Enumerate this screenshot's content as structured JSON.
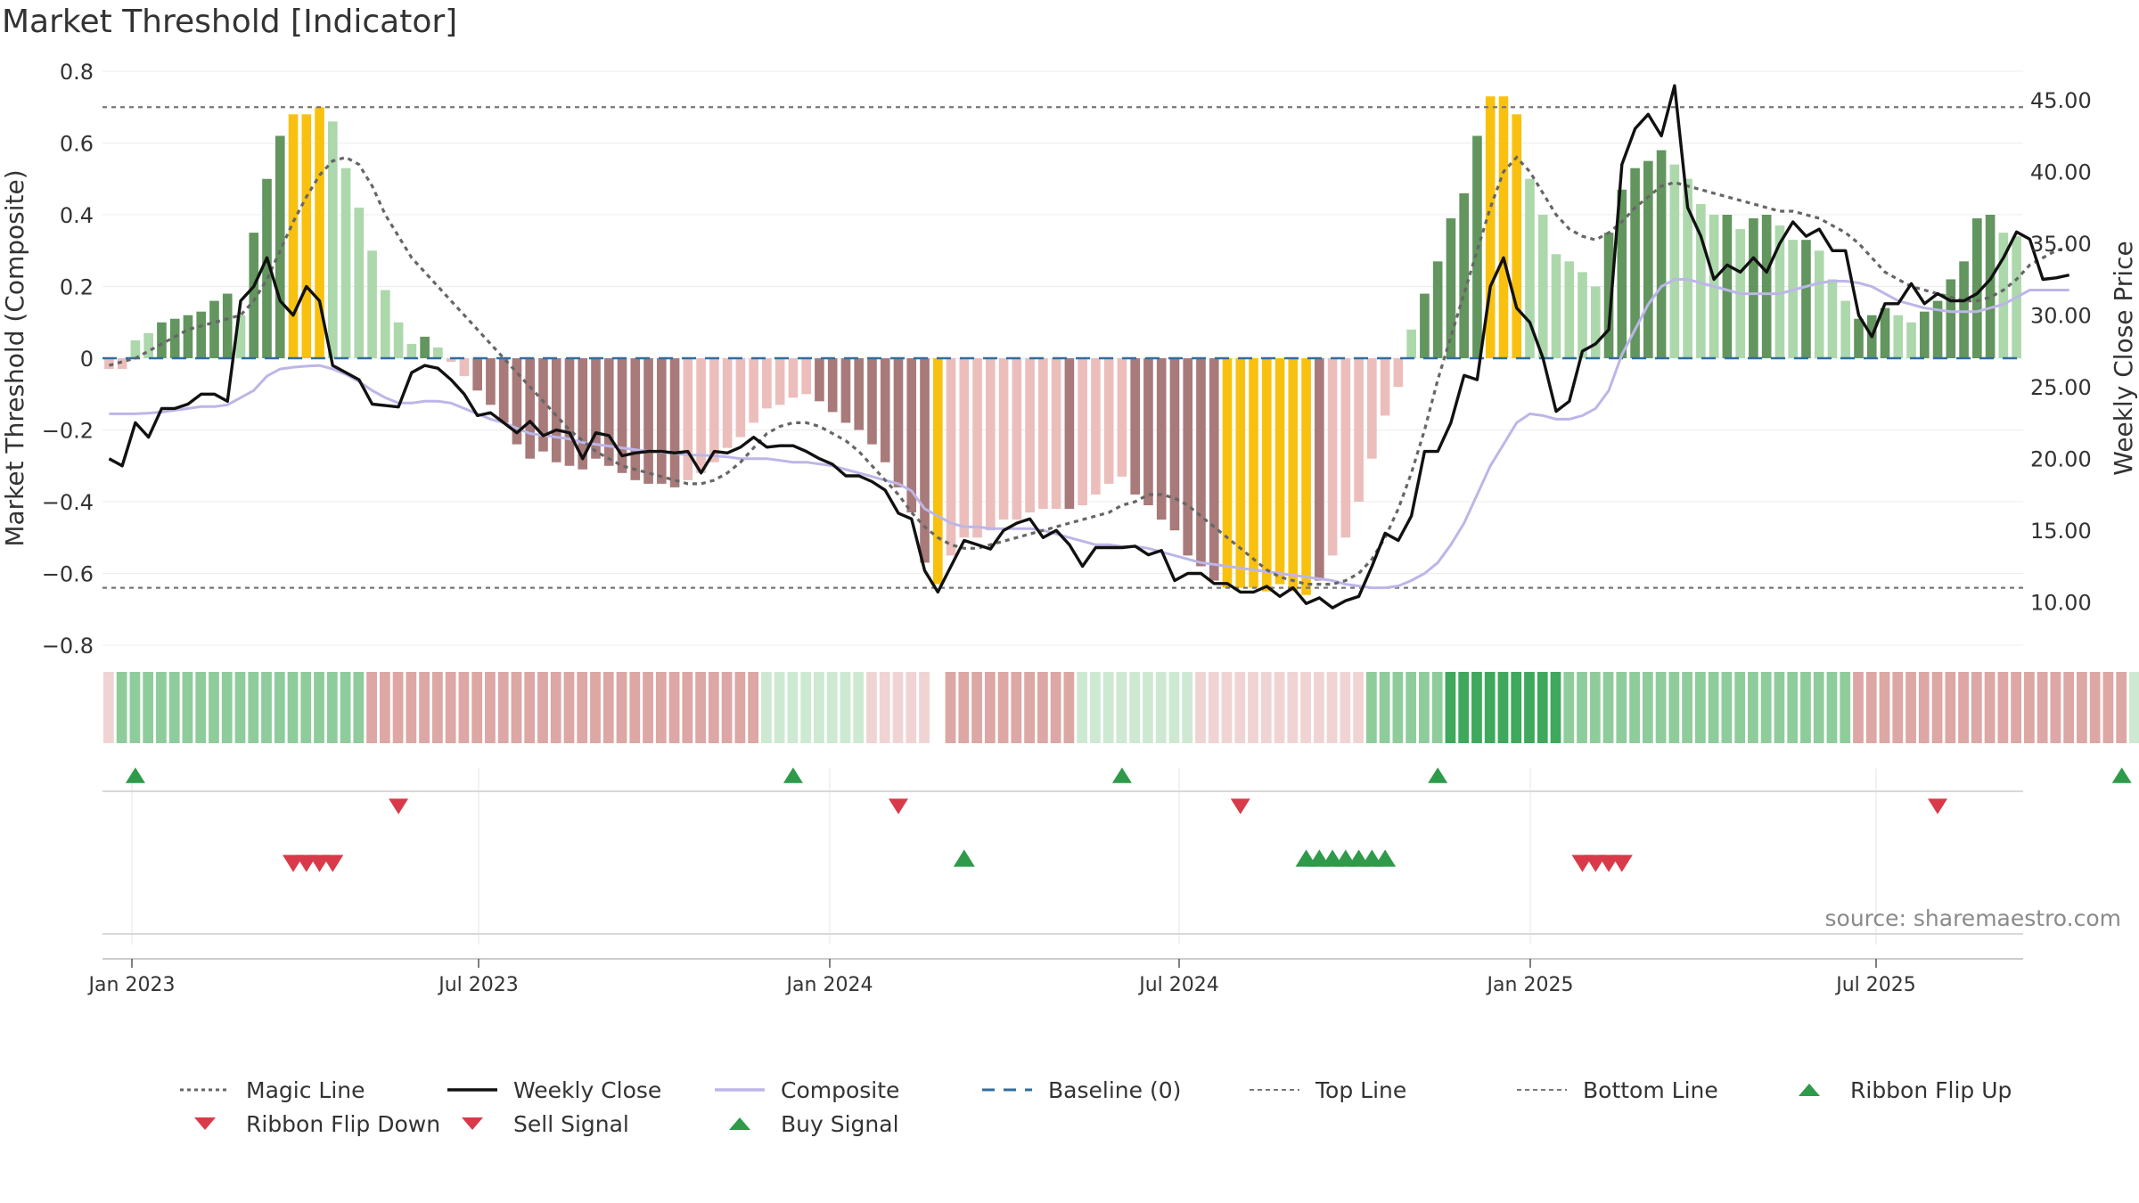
{
  "title": "Market Threshold [Indicator]",
  "source": "source: sharemaestro.com",
  "colors": {
    "green_dark": "#63955f",
    "green_light": "#acd8ac",
    "red_dark": "#a87a7a",
    "red_light": "#ebbebc",
    "gold": "#f9c10f",
    "close": "#111111",
    "composite": "#bcb6e8",
    "magic": "#666666",
    "baseline": "#2f6e9e",
    "thresh": "#777777",
    "buy": "#2e9a4a",
    "sell": "#d93a4a",
    "ribbon_strong_green": "#3fa85c",
    "ribbon_green": "#8fcc9c",
    "ribbon_pale_green": "#cde9d2",
    "ribbon_red": "#dca7a4",
    "ribbon_pale_red": "#f0d4d3"
  },
  "chart_data": {
    "type": "bar",
    "title": "Market Threshold [Indicator]",
    "ylabel": "Market Threshold (Composite)",
    "y2label": "Weekly Close Price",
    "ylim": [
      -0.8,
      0.8
    ],
    "y2lim": [
      7.0,
      47.0
    ],
    "yticks": [
      "0.8",
      "0.6",
      "0.4",
      "0.2",
      "0",
      "−0.2",
      "−0.4",
      "−0.6",
      "−0.8"
    ],
    "y2ticks": [
      "45.00",
      "40.00",
      "35.00",
      "30.00",
      "25.00",
      "20.00",
      "15.00",
      "10.00"
    ],
    "xticks": [
      "Jan 2023",
      "Jul 2023",
      "Jan 2024",
      "Jul 2024",
      "Jan 2025",
      "Jul 2025"
    ],
    "top_line": 0.7,
    "bottom_line": -0.64,
    "baseline": 0,
    "grid": true,
    "legend_position": "bottom",
    "composite_bars": [
      {
        "v": -0.03,
        "c": "red_light"
      },
      {
        "v": -0.03,
        "c": "red_light"
      },
      {
        "v": 0.05,
        "c": "green_light"
      },
      {
        "v": 0.07,
        "c": "green_light"
      },
      {
        "v": 0.1,
        "c": "green_dark"
      },
      {
        "v": 0.11,
        "c": "green_dark"
      },
      {
        "v": 0.12,
        "c": "green_dark"
      },
      {
        "v": 0.13,
        "c": "green_dark"
      },
      {
        "v": 0.16,
        "c": "green_dark"
      },
      {
        "v": 0.18,
        "c": "green_dark"
      },
      {
        "v": 0.12,
        "c": "green_light"
      },
      {
        "v": 0.35,
        "c": "green_dark"
      },
      {
        "v": 0.5,
        "c": "green_dark"
      },
      {
        "v": 0.62,
        "c": "green_dark"
      },
      {
        "v": 0.68,
        "c": "gold"
      },
      {
        "v": 0.68,
        "c": "gold"
      },
      {
        "v": 0.7,
        "c": "gold"
      },
      {
        "v": 0.66,
        "c": "green_light"
      },
      {
        "v": 0.53,
        "c": "green_light"
      },
      {
        "v": 0.42,
        "c": "green_light"
      },
      {
        "v": 0.3,
        "c": "green_light"
      },
      {
        "v": 0.19,
        "c": "green_light"
      },
      {
        "v": 0.1,
        "c": "green_light"
      },
      {
        "v": 0.04,
        "c": "green_light"
      },
      {
        "v": 0.06,
        "c": "green_dark"
      },
      {
        "v": 0.03,
        "c": "green_light"
      },
      {
        "v": -0.01,
        "c": "red_light"
      },
      {
        "v": -0.05,
        "c": "red_light"
      },
      {
        "v": -0.09,
        "c": "red_dark"
      },
      {
        "v": -0.13,
        "c": "red_dark"
      },
      {
        "v": -0.18,
        "c": "red_dark"
      },
      {
        "v": -0.24,
        "c": "red_dark"
      },
      {
        "v": -0.28,
        "c": "red_dark"
      },
      {
        "v": -0.26,
        "c": "red_dark"
      },
      {
        "v": -0.29,
        "c": "red_dark"
      },
      {
        "v": -0.3,
        "c": "red_dark"
      },
      {
        "v": -0.31,
        "c": "red_dark"
      },
      {
        "v": -0.28,
        "c": "red_dark"
      },
      {
        "v": -0.3,
        "c": "red_dark"
      },
      {
        "v": -0.32,
        "c": "red_dark"
      },
      {
        "v": -0.34,
        "c": "red_dark"
      },
      {
        "v": -0.35,
        "c": "red_dark"
      },
      {
        "v": -0.35,
        "c": "red_dark"
      },
      {
        "v": -0.36,
        "c": "red_dark"
      },
      {
        "v": -0.34,
        "c": "red_light"
      },
      {
        "v": -0.32,
        "c": "red_light"
      },
      {
        "v": -0.29,
        "c": "red_light"
      },
      {
        "v": -0.25,
        "c": "red_light"
      },
      {
        "v": -0.22,
        "c": "red_light"
      },
      {
        "v": -0.18,
        "c": "red_light"
      },
      {
        "v": -0.14,
        "c": "red_light"
      },
      {
        "v": -0.13,
        "c": "red_light"
      },
      {
        "v": -0.11,
        "c": "red_light"
      },
      {
        "v": -0.1,
        "c": "red_light"
      },
      {
        "v": -0.12,
        "c": "red_dark"
      },
      {
        "v": -0.15,
        "c": "red_dark"
      },
      {
        "v": -0.18,
        "c": "red_dark"
      },
      {
        "v": -0.2,
        "c": "red_dark"
      },
      {
        "v": -0.24,
        "c": "red_dark"
      },
      {
        "v": -0.29,
        "c": "red_dark"
      },
      {
        "v": -0.36,
        "c": "red_dark"
      },
      {
        "v": -0.43,
        "c": "red_dark"
      },
      {
        "v": -0.57,
        "c": "red_dark"
      },
      {
        "v": -0.63,
        "c": "gold"
      },
      {
        "v": -0.55,
        "c": "red_light"
      },
      {
        "v": -0.5,
        "c": "red_light"
      },
      {
        "v": -0.5,
        "c": "red_light"
      },
      {
        "v": -0.48,
        "c": "red_light"
      },
      {
        "v": -0.45,
        "c": "red_light"
      },
      {
        "v": -0.45,
        "c": "red_light"
      },
      {
        "v": -0.43,
        "c": "red_light"
      },
      {
        "v": -0.42,
        "c": "red_light"
      },
      {
        "v": -0.42,
        "c": "red_light"
      },
      {
        "v": -0.42,
        "c": "red_dark"
      },
      {
        "v": -0.41,
        "c": "red_light"
      },
      {
        "v": -0.38,
        "c": "red_light"
      },
      {
        "v": -0.35,
        "c": "red_light"
      },
      {
        "v": -0.33,
        "c": "red_light"
      },
      {
        "v": -0.38,
        "c": "red_dark"
      },
      {
        "v": -0.41,
        "c": "red_dark"
      },
      {
        "v": -0.45,
        "c": "red_dark"
      },
      {
        "v": -0.48,
        "c": "red_dark"
      },
      {
        "v": -0.55,
        "c": "red_dark"
      },
      {
        "v": -0.58,
        "c": "red_dark"
      },
      {
        "v": -0.62,
        "c": "red_dark"
      },
      {
        "v": -0.64,
        "c": "gold"
      },
      {
        "v": -0.64,
        "c": "gold"
      },
      {
        "v": -0.64,
        "c": "gold"
      },
      {
        "v": -0.65,
        "c": "gold"
      },
      {
        "v": -0.63,
        "c": "gold"
      },
      {
        "v": -0.65,
        "c": "gold"
      },
      {
        "v": -0.66,
        "c": "gold"
      },
      {
        "v": -0.62,
        "c": "red_dark"
      },
      {
        "v": -0.55,
        "c": "red_light"
      },
      {
        "v": -0.5,
        "c": "red_light"
      },
      {
        "v": -0.4,
        "c": "red_light"
      },
      {
        "v": -0.28,
        "c": "red_light"
      },
      {
        "v": -0.16,
        "c": "red_light"
      },
      {
        "v": -0.08,
        "c": "red_light"
      },
      {
        "v": 0.08,
        "c": "green_light"
      },
      {
        "v": 0.18,
        "c": "green_dark"
      },
      {
        "v": 0.27,
        "c": "green_dark"
      },
      {
        "v": 0.39,
        "c": "green_dark"
      },
      {
        "v": 0.46,
        "c": "green_dark"
      },
      {
        "v": 0.62,
        "c": "green_dark"
      },
      {
        "v": 0.73,
        "c": "gold"
      },
      {
        "v": 0.73,
        "c": "gold"
      },
      {
        "v": 0.68,
        "c": "gold"
      },
      {
        "v": 0.5,
        "c": "green_light"
      },
      {
        "v": 0.4,
        "c": "green_light"
      },
      {
        "v": 0.29,
        "c": "green_light"
      },
      {
        "v": 0.27,
        "c": "green_light"
      },
      {
        "v": 0.24,
        "c": "green_light"
      },
      {
        "v": 0.2,
        "c": "green_light"
      },
      {
        "v": 0.35,
        "c": "green_dark"
      },
      {
        "v": 0.47,
        "c": "green_dark"
      },
      {
        "v": 0.53,
        "c": "green_dark"
      },
      {
        "v": 0.55,
        "c": "green_dark"
      },
      {
        "v": 0.58,
        "c": "green_dark"
      },
      {
        "v": 0.54,
        "c": "green_light"
      },
      {
        "v": 0.5,
        "c": "green_light"
      },
      {
        "v": 0.43,
        "c": "green_light"
      },
      {
        "v": 0.4,
        "c": "green_light"
      },
      {
        "v": 0.4,
        "c": "green_dark"
      },
      {
        "v": 0.36,
        "c": "green_light"
      },
      {
        "v": 0.39,
        "c": "green_dark"
      },
      {
        "v": 0.4,
        "c": "green_dark"
      },
      {
        "v": 0.37,
        "c": "green_light"
      },
      {
        "v": 0.33,
        "c": "green_light"
      },
      {
        "v": 0.33,
        "c": "green_dark"
      },
      {
        "v": 0.3,
        "c": "green_light"
      },
      {
        "v": 0.22,
        "c": "green_light"
      },
      {
        "v": 0.16,
        "c": "green_light"
      },
      {
        "v": 0.11,
        "c": "green_dark"
      },
      {
        "v": 0.12,
        "c": "green_dark"
      },
      {
        "v": 0.14,
        "c": "green_dark"
      },
      {
        "v": 0.12,
        "c": "green_light"
      },
      {
        "v": 0.1,
        "c": "green_light"
      },
      {
        "v": 0.13,
        "c": "green_dark"
      },
      {
        "v": 0.16,
        "c": "green_dark"
      },
      {
        "v": 0.22,
        "c": "green_dark"
      },
      {
        "v": 0.27,
        "c": "green_dark"
      },
      {
        "v": 0.39,
        "c": "green_dark"
      },
      {
        "v": 0.4,
        "c": "green_dark"
      },
      {
        "v": 0.35,
        "c": "green_light"
      },
      {
        "v": 0.34,
        "c": "green_light"
      }
    ],
    "weekly_close": [
      20.0,
      19.5,
      22.5,
      21.5,
      23.5,
      23.5,
      23.8,
      24.5,
      24.5,
      24.0,
      31.0,
      32.0,
      34.0,
      31.0,
      30.0,
      32.0,
      31.0,
      26.5,
      26.0,
      25.5,
      23.8,
      23.7,
      23.6,
      26.0,
      26.5,
      26.3,
      25.5,
      24.5,
      23.0,
      23.2,
      22.5,
      21.8,
      22.6,
      21.6,
      22.0,
      21.8,
      20.0,
      21.8,
      21.6,
      20.2,
      20.4,
      20.5,
      20.5,
      20.4,
      20.5,
      19.0,
      20.5,
      20.4,
      20.8,
      21.5,
      20.8,
      20.9,
      20.9,
      20.5,
      20.0,
      19.6,
      18.8,
      18.8,
      18.4,
      17.8,
      16.2,
      15.8,
      12.2,
      10.7,
      12.5,
      14.3,
      14.0,
      13.7,
      15.0,
      15.5,
      15.8,
      14.5,
      15.0,
      14.0,
      12.5,
      13.8,
      13.8,
      13.8,
      13.9,
      13.3,
      13.6,
      11.5,
      12.0,
      12.0,
      11.3,
      11.3,
      10.7,
      10.7,
      11.1,
      10.4,
      11.0,
      9.9,
      10.3,
      9.6,
      10.1,
      10.4,
      12.5,
      14.8,
      14.3,
      16.0,
      20.5,
      20.5,
      22.5,
      25.8,
      25.5,
      32.0,
      34.0,
      30.5,
      29.5,
      27.0,
      23.3,
      24.0,
      27.5,
      28.0,
      29.0,
      40.5,
      43.0,
      44.0,
      42.5,
      46.0,
      37.5,
      35.5,
      32.5,
      33.5,
      33.0,
      34.0,
      33.0,
      35.0,
      36.5,
      35.5,
      36.0,
      34.5,
      34.5,
      30.0,
      28.5,
      30.8,
      30.8,
      32.2,
      30.8,
      31.5,
      31.0,
      31.0,
      31.5,
      32.5,
      34.0,
      35.8,
      35.3,
      32.5,
      32.6,
      32.8
    ],
    "composite_line": [
      -0.155,
      -0.155,
      -0.155,
      -0.153,
      -0.15,
      -0.145,
      -0.14,
      -0.135,
      -0.135,
      -0.13,
      -0.11,
      -0.09,
      -0.05,
      -0.03,
      -0.025,
      -0.022,
      -0.02,
      -0.03,
      -0.045,
      -0.065,
      -0.09,
      -0.11,
      -0.125,
      -0.125,
      -0.12,
      -0.12,
      -0.125,
      -0.14,
      -0.155,
      -0.17,
      -0.18,
      -0.195,
      -0.21,
      -0.215,
      -0.22,
      -0.225,
      -0.235,
      -0.24,
      -0.245,
      -0.25,
      -0.255,
      -0.26,
      -0.262,
      -0.265,
      -0.27,
      -0.27,
      -0.272,
      -0.275,
      -0.28,
      -0.28,
      -0.28,
      -0.285,
      -0.29,
      -0.29,
      -0.295,
      -0.3,
      -0.31,
      -0.32,
      -0.33,
      -0.34,
      -0.35,
      -0.37,
      -0.42,
      -0.44,
      -0.46,
      -0.47,
      -0.47,
      -0.475,
      -0.475,
      -0.475,
      -0.475,
      -0.48,
      -0.49,
      -0.5,
      -0.51,
      -0.52,
      -0.52,
      -0.525,
      -0.525,
      -0.53,
      -0.54,
      -0.55,
      -0.56,
      -0.57,
      -0.575,
      -0.58,
      -0.585,
      -0.59,
      -0.595,
      -0.6,
      -0.605,
      -0.61,
      -0.615,
      -0.62,
      -0.63,
      -0.635,
      -0.64,
      -0.64,
      -0.635,
      -0.62,
      -0.6,
      -0.57,
      -0.52,
      -0.46,
      -0.38,
      -0.3,
      -0.24,
      -0.18,
      -0.155,
      -0.16,
      -0.17,
      -0.17,
      -0.16,
      -0.14,
      -0.09,
      0.01,
      0.08,
      0.15,
      0.2,
      0.22,
      0.22,
      0.21,
      0.2,
      0.19,
      0.18,
      0.18,
      0.18,
      0.18,
      0.19,
      0.2,
      0.21,
      0.215,
      0.215,
      0.21,
      0.2,
      0.18,
      0.16,
      0.15,
      0.14,
      0.135,
      0.13,
      0.13,
      0.13,
      0.14,
      0.15,
      0.17,
      0.19,
      0.19,
      0.19,
      0.19
    ],
    "magic_line": [
      -0.02,
      -0.01,
      0.0,
      0.02,
      0.04,
      0.06,
      0.08,
      0.09,
      0.1,
      0.11,
      0.12,
      0.16,
      0.22,
      0.3,
      0.38,
      0.45,
      0.51,
      0.55,
      0.56,
      0.54,
      0.48,
      0.4,
      0.34,
      0.28,
      0.24,
      0.2,
      0.16,
      0.12,
      0.08,
      0.04,
      0.0,
      -0.04,
      -0.08,
      -0.12,
      -0.16,
      -0.2,
      -0.23,
      -0.26,
      -0.28,
      -0.3,
      -0.31,
      -0.32,
      -0.33,
      -0.34,
      -0.35,
      -0.35,
      -0.34,
      -0.32,
      -0.29,
      -0.25,
      -0.21,
      -0.19,
      -0.18,
      -0.18,
      -0.19,
      -0.21,
      -0.23,
      -0.26,
      -0.3,
      -0.34,
      -0.38,
      -0.43,
      -0.47,
      -0.5,
      -0.52,
      -0.53,
      -0.53,
      -0.52,
      -0.51,
      -0.5,
      -0.49,
      -0.48,
      -0.47,
      -0.46,
      -0.45,
      -0.44,
      -0.43,
      -0.41,
      -0.4,
      -0.38,
      -0.38,
      -0.39,
      -0.41,
      -0.44,
      -0.47,
      -0.5,
      -0.53,
      -0.56,
      -0.59,
      -0.61,
      -0.62,
      -0.63,
      -0.63,
      -0.63,
      -0.62,
      -0.6,
      -0.56,
      -0.5,
      -0.42,
      -0.32,
      -0.2,
      -0.06,
      0.06,
      0.18,
      0.3,
      0.42,
      0.52,
      0.56,
      0.52,
      0.46,
      0.4,
      0.36,
      0.34,
      0.33,
      0.35,
      0.38,
      0.42,
      0.45,
      0.48,
      0.49,
      0.48,
      0.47,
      0.46,
      0.45,
      0.44,
      0.43,
      0.42,
      0.41,
      0.41,
      0.4,
      0.39,
      0.37,
      0.35,
      0.32,
      0.28,
      0.24,
      0.22,
      0.2,
      0.19,
      0.18,
      0.17,
      0.16,
      0.16,
      0.17,
      0.19,
      0.22,
      0.26,
      0.28,
      0.3,
      0.31
    ],
    "ribbon": [
      "pale_red",
      "green",
      "green",
      "green",
      "green",
      "green",
      "green",
      "green",
      "green",
      "green",
      "green",
      "green",
      "green",
      "green",
      "green",
      "green",
      "green",
      "green",
      "green",
      "green",
      "red",
      "red",
      "red",
      "red",
      "red",
      "red",
      "red",
      "red",
      "red",
      "red",
      "red",
      "red",
      "red",
      "red",
      "red",
      "red",
      "red",
      "red",
      "red",
      "red",
      "red",
      "red",
      "red",
      "red",
      "red",
      "red",
      "red",
      "red",
      "red",
      "red",
      "pale_green",
      "pale_green",
      "pale_green",
      "pale_green",
      "pale_green",
      "pale_green",
      "pale_green",
      "pale_green",
      "pale_red",
      "pale_red",
      "pale_red",
      "pale_red",
      "pale_red",
      "pale_red",
      "red",
      "red",
      "red",
      "red",
      "red",
      "red",
      "red",
      "red",
      "red",
      "red",
      "pale_green",
      "pale_green",
      "pale_green",
      "pale_green",
      "pale_green",
      "pale_green",
      "pale_green",
      "pale_green",
      "pale_green",
      "pale_red",
      "pale_red",
      "pale_red",
      "pale_red",
      "pale_red",
      "pale_red",
      "pale_red",
      "pale_red",
      "pale_red",
      "pale_red",
      "pale_red",
      "pale_red",
      "pale_red",
      "green",
      "green",
      "green",
      "green",
      "green",
      "green",
      "strong_green",
      "strong_green",
      "strong_green",
      "strong_green",
      "strong_green",
      "strong_green",
      "strong_green",
      "strong_green",
      "strong_green",
      "green",
      "green",
      "green",
      "green",
      "green",
      "green",
      "green",
      "green",
      "green",
      "green",
      "green",
      "green",
      "green",
      "green",
      "green",
      "green",
      "green",
      "green",
      "green",
      "green",
      "green",
      "green",
      "red",
      "red",
      "red",
      "red",
      "red",
      "red",
      "red",
      "red",
      "red",
      "red",
      "red",
      "red",
      "red",
      "red",
      "red",
      "red",
      "red",
      "red",
      "red",
      "red",
      "red",
      "pale_green",
      "pale_green",
      "pale_green",
      "pale_green"
    ],
    "ribbon_flip_up": [
      2,
      52,
      77,
      101,
      153
    ],
    "ribbon_flip_down": [
      22,
      60,
      86,
      139
    ],
    "sell_signal": [
      14,
      15,
      16,
      17,
      112,
      113,
      114,
      115
    ],
    "buy_signal": [
      65,
      91,
      92,
      93,
      94,
      95,
      96,
      97
    ]
  },
  "legend": [
    {
      "label": "Magic Line",
      "kind": "dotted",
      "color": "magic"
    },
    {
      "label": "Weekly Close",
      "kind": "solid",
      "color": "close"
    },
    {
      "label": "Composite",
      "kind": "solid",
      "color": "composite"
    },
    {
      "label": "Baseline (0)",
      "kind": "dashed",
      "color": "baseline"
    },
    {
      "label": "Top Line",
      "kind": "dashed-thin",
      "color": "thresh"
    },
    {
      "label": "Bottom Line",
      "kind": "dashed-thin",
      "color": "thresh"
    },
    {
      "label": "Ribbon Flip Up",
      "kind": "tri-up",
      "color": "buy"
    },
    {
      "label": "Ribbon Flip Down",
      "kind": "tri-down",
      "color": "sell"
    },
    {
      "label": "Sell Signal",
      "kind": "tri-down",
      "color": "sell"
    },
    {
      "label": "Buy Signal",
      "kind": "tri-up",
      "color": "buy"
    }
  ]
}
